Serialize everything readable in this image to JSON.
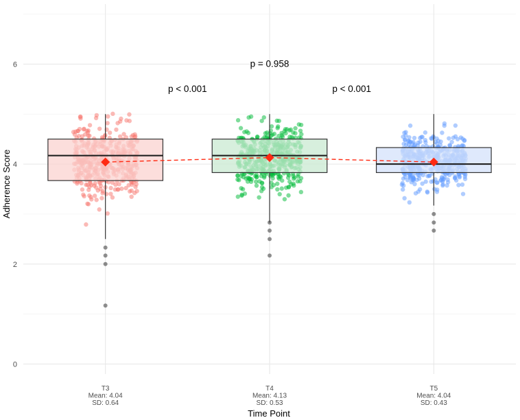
{
  "chart_data": {
    "type": "boxplot",
    "xlabel": "Time Point",
    "ylabel": "Adherence Score",
    "ylim": [
      -0.2,
      7.2
    ],
    "yticks": [
      0,
      2,
      4,
      6
    ],
    "groups": [
      {
        "name": "T3",
        "mean_label": "Mean: 4.04",
        "sd_label": "SD: 0.64",
        "mean": 4.04,
        "sd": 0.64,
        "q1": 3.67,
        "median": 4.17,
        "q3": 4.5,
        "whisker_low": 2.5,
        "whisker_high": 5.0,
        "outliers": [
          2.33,
          2.17,
          2.0,
          1.17
        ],
        "color": "#f8766d",
        "box_fill": "#fbd3d0"
      },
      {
        "name": "T4",
        "mean_label": "Mean: 4.13",
        "sd_label": "SD: 0.53",
        "mean": 4.13,
        "sd": 0.53,
        "q1": 3.83,
        "median": 4.17,
        "q3": 4.5,
        "whisker_low": 2.83,
        "whisker_high": 5.0,
        "outliers": [
          2.83,
          2.67,
          2.5,
          2.17
        ],
        "color": "#00ba38",
        "box_fill": "#c9ead1"
      },
      {
        "name": "T5",
        "mean_label": "Mean: 4.04",
        "sd_label": "SD: 0.43",
        "mean": 4.04,
        "sd": 0.43,
        "q1": 3.83,
        "median": 4.0,
        "q3": 4.33,
        "whisker_low": 3.17,
        "whisker_high": 5.0,
        "outliers": [
          3.0,
          2.83,
          2.67
        ],
        "color": "#619cff",
        "box_fill": "#d4e2fb"
      }
    ],
    "mean_marker_color": "#ff2a12",
    "annotations": [
      {
        "text": "p = 0.958",
        "between": [
          "T3",
          "T5"
        ],
        "y": 6.0
      },
      {
        "text": "p < 0.001",
        "between": [
          "T3",
          "T4"
        ],
        "y": 5.5
      },
      {
        "text": "p < 0.001",
        "between": [
          "T4",
          "T5"
        ],
        "y": 5.5
      }
    ]
  }
}
